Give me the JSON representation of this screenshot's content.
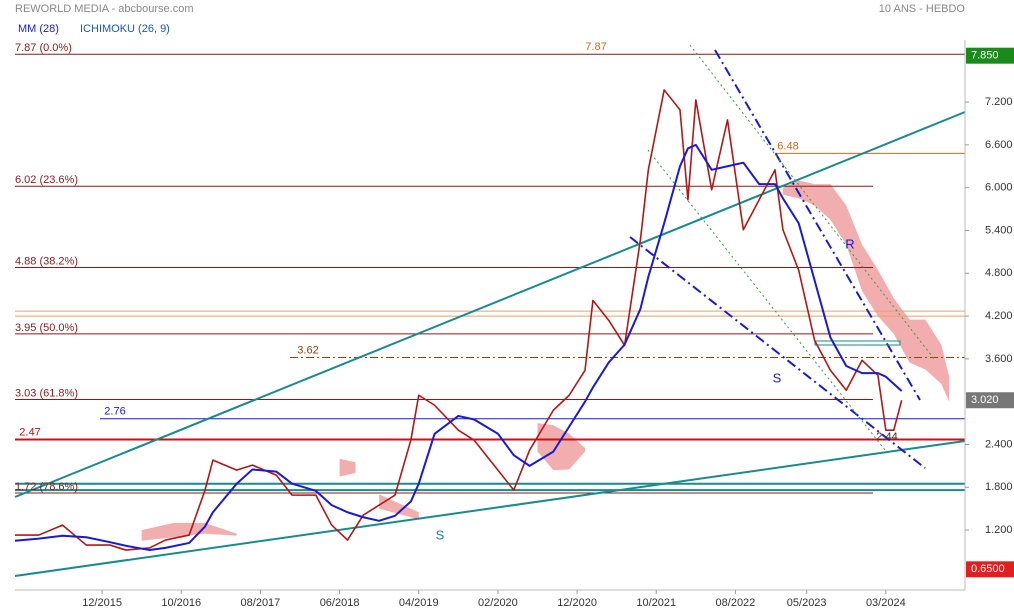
{
  "chart_data": {
    "type": "line",
    "title": "REWORLD MEDIA - abcbourse.com",
    "subtitle": "10 ANS - HEBDO",
    "xlim": [
      "01/2015",
      "01/2025"
    ],
    "xticks": [
      "12/2015",
      "10/2016",
      "08/2017",
      "06/2018",
      "04/2019",
      "02/2020",
      "12/2020",
      "10/2021",
      "08/2022",
      "05/2023",
      "03/2024"
    ],
    "ylim": [
      0.36,
      8.07
    ],
    "yticks": [
      {
        "value": 1.2,
        "label": "1.200"
      },
      {
        "value": 1.8,
        "label": "1.800"
      },
      {
        "value": 2.4,
        "label": "2.400"
      },
      {
        "value": 3.6,
        "label": "3.600"
      },
      {
        "value": 4.2,
        "label": "4.200"
      },
      {
        "value": 4.8,
        "label": "4.800"
      },
      {
        "value": 5.4,
        "label": "5.400"
      },
      {
        "value": 6.0,
        "label": "6.000"
      },
      {
        "value": 6.6,
        "label": "6.600"
      },
      {
        "value": 7.2,
        "label": "7.200"
      }
    ],
    "x": [
      "01/2015",
      "04/2015",
      "07/2015",
      "10/2015",
      "01/2016",
      "03/2016",
      "06/2016",
      "08/2016",
      "11/2016",
      "01/2017",
      "02/2017",
      "05/2017",
      "07/2017",
      "10/2017",
      "12/2017",
      "03/2018",
      "05/2018",
      "07/2018",
      "09/2018",
      "11/2018",
      "01/2019",
      "03/2019",
      "04/2019",
      "06/2019",
      "09/2019",
      "11/2019",
      "02/2020",
      "04/2020",
      "06/2020",
      "09/2020",
      "11/2020",
      "01/2021",
      "02/2021",
      "04/2021",
      "06/2021",
      "08/2021",
      "09/2021",
      "11/2021",
      "01/2022",
      "02/2022",
      "03/2022",
      "05/2022",
      "07/2022",
      "09/2022",
      "11/2022",
      "01/2023",
      "02/2023",
      "04/2023",
      "06/2023",
      "08/2023",
      "10/2023",
      "12/2023",
      "02/2024",
      "03/2024",
      "04/2024",
      "05/2024"
    ],
    "price": {
      "color": "#b01818",
      "values": [
        1.13,
        1.13,
        1.27,
        0.99,
        0.99,
        0.92,
        0.95,
        1.06,
        1.13,
        1.76,
        2.18,
        2.04,
        2.11,
        1.97,
        1.69,
        1.69,
        1.27,
        1.06,
        1.41,
        1.55,
        1.69,
        2.46,
        3.09,
        2.95,
        2.6,
        2.46,
        2.04,
        1.76,
        2.32,
        2.88,
        3.09,
        3.44,
        4.42,
        4.14,
        3.79,
        5.27,
        6.25,
        7.37,
        7.09,
        5.83,
        7.23,
        5.97,
        6.95,
        5.41,
        5.83,
        6.25,
        5.41,
        4.84,
        3.86,
        3.44,
        3.16,
        3.58,
        3.37,
        2.6,
        2.6,
        3.02
      ]
    },
    "series": [
      {
        "name": "MM (28)",
        "color": "#1a1ad2",
        "values": [
          1.05,
          1.08,
          1.12,
          1.1,
          1.03,
          0.98,
          0.92,
          0.95,
          1.02,
          1.25,
          1.45,
          1.85,
          2.05,
          2.02,
          1.85,
          1.75,
          1.55,
          1.45,
          1.38,
          1.33,
          1.4,
          1.6,
          1.85,
          2.55,
          2.8,
          2.75,
          2.55,
          2.25,
          2.1,
          2.3,
          2.65,
          3.0,
          3.2,
          3.55,
          3.8,
          4.3,
          4.75,
          5.5,
          6.3,
          6.55,
          6.6,
          6.25,
          6.3,
          6.35,
          6.05,
          6.05,
          5.85,
          5.5,
          4.7,
          3.9,
          3.5,
          3.4,
          3.4,
          3.35,
          3.25,
          3.15
        ]
      }
    ],
    "ichimoku": {
      "name": "ICHIMOKU (26, 9)",
      "color": "#f0a0a0",
      "legend_color": "#1a5aaa",
      "x": [
        "05/2016",
        "09/2016",
        "01/2017",
        "05/2017",
        null,
        "06/2018",
        "08/2018",
        null,
        "11/2018",
        "04/2019",
        null,
        "07/2020",
        "09/2020",
        "11/2020",
        "01/2021",
        null,
        "02/2023",
        "04/2023",
        "06/2023",
        "08/2023",
        "10/2023",
        "12/2023",
        "02/2024",
        "04/2024",
        "06/2024",
        "08/2024",
        "10/2024",
        "11/2024"
      ],
      "upper": [
        1.2,
        1.3,
        1.3,
        1.15,
        null,
        2.2,
        2.15,
        null,
        1.7,
        1.45,
        null,
        2.7,
        2.67,
        2.55,
        2.35,
        null,
        6.0,
        6.1,
        6.05,
        6.05,
        5.75,
        5.2,
        4.85,
        4.45,
        4.15,
        4.15,
        3.8,
        3.35
      ],
      "lower": [
        1.05,
        1.1,
        1.15,
        1.12,
        null,
        1.95,
        2.0,
        null,
        1.5,
        1.35,
        null,
        2.3,
        2.04,
        2.05,
        2.3,
        null,
        5.9,
        5.85,
        5.75,
        5.55,
        5.2,
        4.55,
        4.2,
        3.95,
        3.55,
        3.45,
        3.25,
        3.0
      ]
    },
    "fibonacci": [
      {
        "value": 7.87,
        "label": "7.87  (0.0%)"
      },
      {
        "value": 6.02,
        "label": "6.02  (23.6%)"
      },
      {
        "value": 4.88,
        "label": "4.88  (38.2%)"
      },
      {
        "value": 3.95,
        "label": "3.95  (50.0%)"
      },
      {
        "value": 3.03,
        "label": "3.03  (61.8%)"
      },
      {
        "value": 1.72,
        "label": "1.72  (78.6%)"
      }
    ],
    "levels": [
      {
        "value": 7.87,
        "label": "7.87",
        "color": "#d2691e"
      },
      {
        "value": 6.48,
        "label": "6.48",
        "color": "#d2691e"
      },
      {
        "value": 3.62,
        "label": "3.62",
        "color": "#8b4513"
      },
      {
        "value": 2.76,
        "label": "2.76",
        "color": "#1a1ad2"
      },
      {
        "value": 2.47,
        "label": "2.47",
        "color": "#cc1010"
      },
      {
        "value": 4.27,
        "color": "#e8a060"
      },
      {
        "value": 4.2,
        "color": "#e8a060"
      },
      {
        "value": 1.85,
        "color": "#1a8a8a"
      },
      {
        "value": 1.76,
        "color": "#1a8a8a"
      }
    ],
    "price_tags": [
      {
        "value": 7.85,
        "label": "7.850",
        "color": "#1a8a1a"
      },
      {
        "value": 3.02,
        "label": "3.020",
        "color": "#777777"
      },
      {
        "value": 0.65,
        "label": "0.6500",
        "color": "#e02020"
      }
    ],
    "annotations": [
      "S",
      "R",
      "S",
      "2.44"
    ]
  }
}
